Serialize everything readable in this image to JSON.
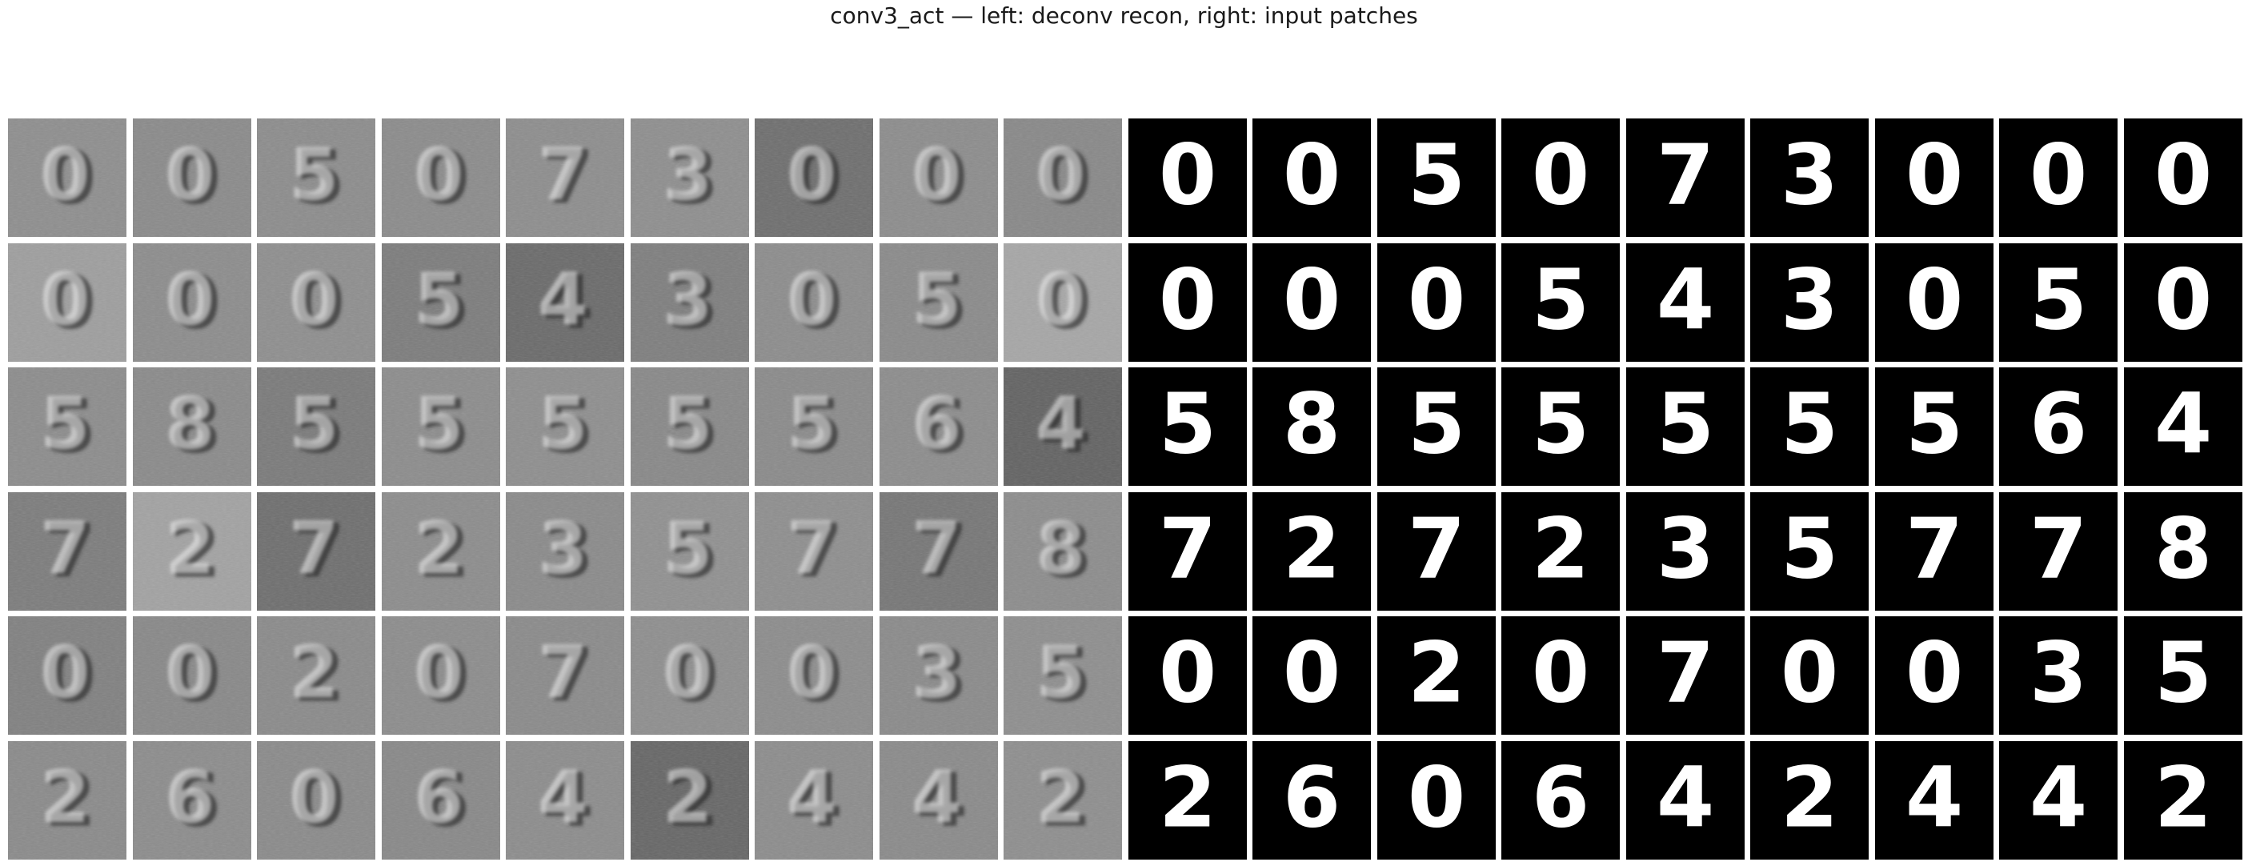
{
  "figure": {
    "title": "conv3_act — left: deconv recon, right: input patches"
  },
  "layer": "conv3_act",
  "panels": {
    "left": {
      "content": "deconv recon"
    },
    "right": {
      "content": "input patches"
    }
  },
  "grid": {
    "rows": 6,
    "cols_per_panel": 9,
    "input_digits": [
      [
        "0",
        "0",
        "5",
        "0",
        "7",
        "3",
        "0",
        "0",
        "0"
      ],
      [
        "0",
        "0",
        "0",
        "5",
        "4",
        "3",
        "0",
        "5",
        "0"
      ],
      [
        "5",
        "8",
        "5",
        "5",
        "5",
        "5",
        "5",
        "6",
        "4"
      ],
      [
        "7",
        "2",
        "7",
        "2",
        "3",
        "5",
        "7",
        "7",
        "8"
      ],
      [
        "0",
        "0",
        "2",
        "0",
        "7",
        "0",
        "0",
        "3",
        "5"
      ],
      [
        "2",
        "6",
        "0",
        "6",
        "4",
        "2",
        "4",
        "4",
        "2"
      ]
    ],
    "recon_background_gray": [
      [
        "#8e8e8e",
        "#8a8a8a",
        "#8c8c8c",
        "#8b8b8b",
        "#8d8d8d",
        "#8e8e8e",
        "#6e6e6e",
        "#8c8c8c",
        "#888888"
      ],
      [
        "#9e9e9e",
        "#8c8c8c",
        "#8e8e8e",
        "#7c7c7c",
        "#6a6a6a",
        "#7e7e7e",
        "#8c8c8c",
        "#8a8a8a",
        "#a6a6a6"
      ],
      [
        "#8c8c8c",
        "#8a8a8a",
        "#7a7a7a",
        "#8c8c8c",
        "#8e8e8e",
        "#888888",
        "#8a8a8a",
        "#8c8c8c",
        "#626262"
      ],
      [
        "#7c7c7c",
        "#a2a2a2",
        "#6e6e6e",
        "#8c8c8c",
        "#8a8a8a",
        "#909090",
        "#8e8e8e",
        "#767676",
        "#8c8c8c"
      ],
      [
        "#808080",
        "#888888",
        "#8a8a8a",
        "#8c8c8c",
        "#8a8a8a",
        "#8e8e8e",
        "#8c8c8c",
        "#8a8a8a",
        "#8e8e8e"
      ],
      [
        "#8a8a8a",
        "#8c8c8c",
        "#8a8a8a",
        "#888888",
        "#8c8c8c",
        "#666666",
        "#8c8c8c",
        "#8a8a8a",
        "#8e8e8e"
      ]
    ]
  }
}
